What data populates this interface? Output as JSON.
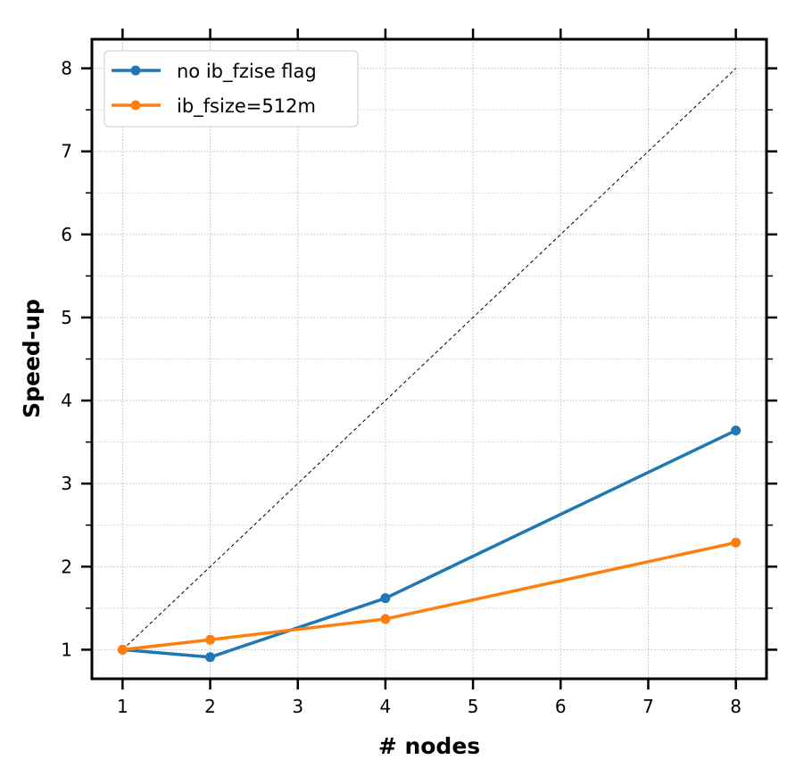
{
  "chart_data": {
    "type": "line",
    "xlabel": "# nodes",
    "ylabel": "Speed-up",
    "xlim": [
      0.65,
      8.35
    ],
    "ylim": [
      0.65,
      8.35
    ],
    "xticks": [
      1,
      2,
      3,
      4,
      5,
      6,
      7,
      8
    ],
    "yticks": [
      1,
      2,
      3,
      4,
      5,
      6,
      7,
      8
    ],
    "grid": true,
    "legend_position": "top-left",
    "reference_line": {
      "x": [
        1,
        8
      ],
      "y": [
        1,
        8
      ],
      "style": "dashed",
      "color": "#000000"
    },
    "series": [
      {
        "name": "no ib_fzise flag",
        "color": "#1f77b4",
        "x": [
          1,
          2,
          4,
          8
        ],
        "y": [
          1.0,
          0.91,
          1.62,
          3.64
        ]
      },
      {
        "name": "ib_fsize=512m",
        "color": "#ff7f0e",
        "x": [
          1,
          2,
          4,
          8
        ],
        "y": [
          1.0,
          1.12,
          1.37,
          2.29
        ]
      }
    ]
  }
}
